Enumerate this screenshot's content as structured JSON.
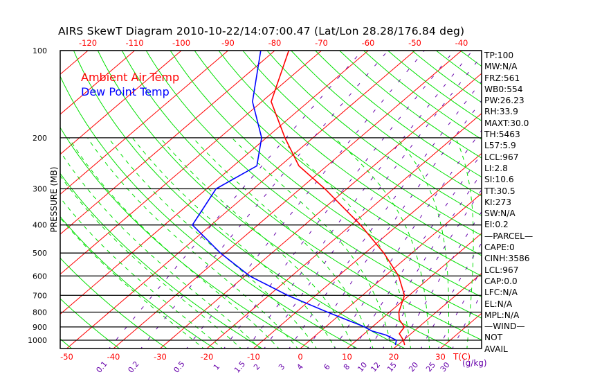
{
  "chart_data": {
    "type": "line",
    "subtype": "skew-t log-p",
    "title": "AIRS SkewT Diagram 2010-10-22/14:07:00.47 (Lat/Lon 28.28/176.84 deg)",
    "ylabel": "PRESSURE (MB)",
    "xlabel": "T(C)",
    "mixing_ratio_label": "(g/kg)",
    "y_scale": "log",
    "ylim": [
      1068,
      100
    ],
    "pressure_ticks": [
      "100",
      "200",
      "300",
      "400",
      "500",
      "600",
      "700",
      "800",
      "900",
      "1000"
    ],
    "top_temp_ticks": [
      "-120",
      "-110",
      "-100",
      "-90",
      "-80",
      "-70",
      "-60",
      "-50",
      "-40"
    ],
    "bottom_temp_ticks": [
      "-50",
      "-40",
      "-30",
      "-20",
      "-10",
      "0",
      "10",
      "20",
      "30"
    ],
    "mixing_ratio_ticks": [
      "0.1",
      "0.2",
      "0.5",
      "1",
      "1.5",
      "2",
      "3",
      "4",
      "6",
      "8",
      "10",
      "12",
      "15",
      "20",
      "25",
      "30"
    ],
    "legend": [
      "Ambient Air Temp",
      "Dew Point Temp"
    ],
    "legend_placement": "top-left",
    "series": [
      {
        "name": "Ambient Air Temp",
        "color": "#ff0000",
        "pressure": [
          1040,
          1000,
          950,
          900,
          850,
          800,
          700,
          600,
          500,
          400,
          300,
          250,
          200,
          150,
          100
        ],
        "values": [
          21.5,
          20,
          17.5,
          16.9,
          14,
          12,
          9,
          2.9,
          -6,
          -18,
          -34.7,
          -46,
          -56,
          -68,
          -77
        ]
      },
      {
        "name": "Dew Point Temp",
        "color": "#0000ff",
        "pressure": [
          1040,
          1000,
          960,
          930,
          900,
          800,
          700,
          600,
          500,
          400,
          300,
          250,
          200,
          150,
          100
        ],
        "values": [
          19.5,
          18.5,
          15,
          11,
          8.4,
          -3.3,
          -16,
          -29,
          -41,
          -54,
          -58,
          -55,
          -61,
          -72,
          -83
        ]
      }
    ]
  },
  "stats": [
    "TP:100",
    "MW:N/A",
    "FRZ:561",
    "WB0:554",
    "PW:26.23",
    "RH:33.9",
    "MAXT:30.0",
    "TH:5463",
    "L57:5.9",
    "LCL:967",
    "LI:2.8",
    "SI:10.6",
    "TT:30.5",
    "KI:273",
    "SW:N/A",
    "EI:0.2",
    "—PARCEL—",
    "CAPE:0",
    "CINH:3586",
    "LCL:967",
    "CAP:0.0",
    "LFC:N/A",
    "EL:N/A",
    "MPL:N/A",
    "—WIND—",
    " NOT",
    " AVAIL"
  ],
  "colors": {
    "isotherm": "#ff0000",
    "dry_adiabat": "#00e000",
    "moist_adiabat": "#00e000",
    "mixing_ratio": "#6600aa",
    "isobar": "#000000"
  }
}
